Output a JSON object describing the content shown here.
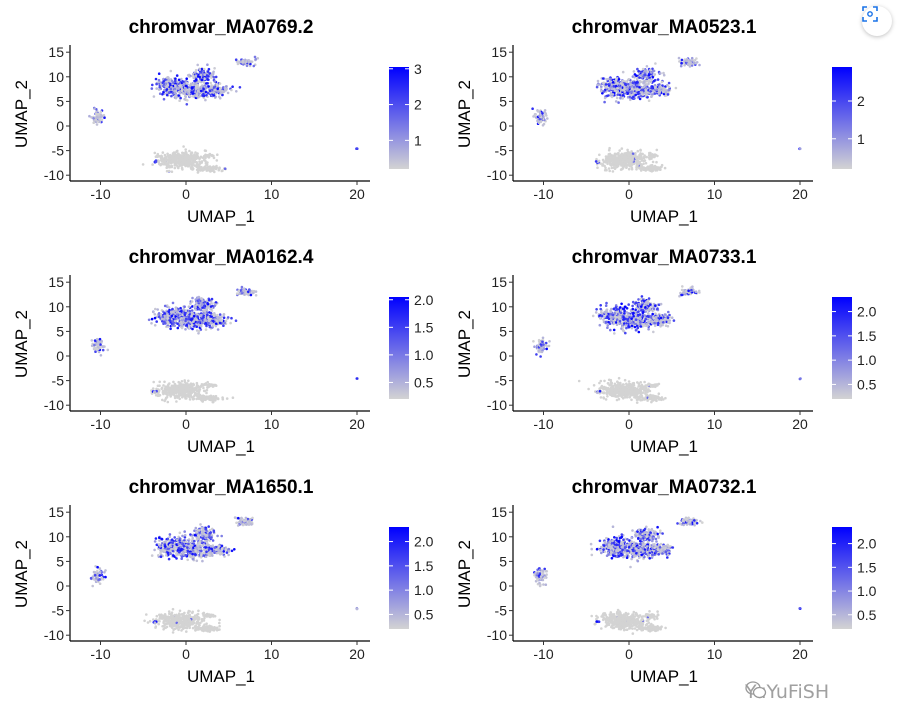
{
  "chart_data": [
    {
      "type": "scatter",
      "title": "chromvar_MA0769.2",
      "xlabel": "UMAP_1",
      "ylabel": "UMAP_2",
      "xlim": [
        -13.5,
        21.5
      ],
      "ylim": [
        -11,
        16
      ],
      "xticks": [
        -10,
        0,
        10,
        20
      ],
      "yticks": [
        15,
        10,
        5,
        0,
        -5,
        -10
      ],
      "legend": {
        "position": "right",
        "range": [
          0.2,
          3.05
        ],
        "ticks": [
          "3",
          "2",
          "1"
        ],
        "tick_values": [
          3,
          2,
          1
        ]
      },
      "colors": {
        "low": "#d3d3d3",
        "high": "#0000ff"
      }
    },
    {
      "type": "scatter",
      "title": "chromvar_MA0523.1",
      "xlabel": "UMAP_1",
      "ylabel": "UMAP_2",
      "xlim": [
        -13.5,
        21.5
      ],
      "ylim": [
        -11,
        16
      ],
      "xticks": [
        -10,
        0,
        10,
        20
      ],
      "yticks": [
        15,
        10,
        5,
        0,
        -5,
        -10
      ],
      "legend": {
        "position": "right",
        "range": [
          0.2,
          2.9
        ],
        "ticks": [
          "2",
          "1"
        ],
        "tick_values": [
          2,
          1
        ]
      },
      "colors": {
        "low": "#d3d3d3",
        "high": "#0000ff"
      }
    },
    {
      "type": "scatter",
      "title": "chromvar_MA0162.4",
      "xlabel": "UMAP_1",
      "ylabel": "UMAP_2",
      "xlim": [
        -13.5,
        21.5
      ],
      "ylim": [
        -11,
        16
      ],
      "xticks": [
        -10,
        0,
        10,
        20
      ],
      "yticks": [
        15,
        10,
        5,
        0,
        -5,
        -10
      ],
      "legend": {
        "position": "right",
        "range": [
          0.2,
          2.05
        ],
        "ticks": [
          "2.0",
          "1.5",
          "1.0",
          "0.5"
        ],
        "tick_values": [
          2,
          1.5,
          1,
          0.5
        ]
      },
      "colors": {
        "low": "#d3d3d3",
        "high": "#0000ff"
      }
    },
    {
      "type": "scatter",
      "title": "chromvar_MA0733.1",
      "xlabel": "UMAP_1",
      "ylabel": "UMAP_2",
      "xlim": [
        -13.5,
        21.5
      ],
      "ylim": [
        -11,
        16
      ],
      "xticks": [
        -10,
        0,
        10,
        20
      ],
      "yticks": [
        15,
        10,
        5,
        0,
        -5,
        -10
      ],
      "legend": {
        "position": "right",
        "range": [
          0.2,
          2.3
        ],
        "ticks": [
          "2.0",
          "1.5",
          "1.0",
          "0.5"
        ],
        "tick_values": [
          2,
          1.5,
          1,
          0.5
        ]
      },
      "colors": {
        "low": "#d3d3d3",
        "high": "#0000ff"
      }
    },
    {
      "type": "scatter",
      "title": "chromvar_MA1650.1",
      "xlabel": "UMAP_1",
      "ylabel": "UMAP_2",
      "xlim": [
        -13.5,
        21.5
      ],
      "ylim": [
        -11,
        16
      ],
      "xticks": [
        -10,
        0,
        10,
        20
      ],
      "yticks": [
        15,
        10,
        5,
        0,
        -5,
        -10
      ],
      "legend": {
        "position": "right",
        "range": [
          0.2,
          2.3
        ],
        "ticks": [
          "2.0",
          "1.5",
          "1.0",
          "0.5"
        ],
        "tick_values": [
          2,
          1.5,
          1,
          0.5
        ]
      },
      "colors": {
        "low": "#d3d3d3",
        "high": "#0000ff"
      }
    },
    {
      "type": "scatter",
      "title": "chromvar_MA0732.1",
      "xlabel": "UMAP_1",
      "ylabel": "UMAP_2",
      "xlim": [
        -13.5,
        21.5
      ],
      "ylim": [
        -11,
        16
      ],
      "xticks": [
        -10,
        0,
        10,
        20
      ],
      "yticks": [
        15,
        10,
        5,
        0,
        -5,
        -10
      ],
      "legend": {
        "position": "right",
        "range": [
          0.2,
          2.35
        ],
        "ticks": [
          "2.0",
          "1.5",
          "1.0",
          "0.5"
        ],
        "tick_values": [
          2,
          1.5,
          1,
          0.5
        ]
      },
      "colors": {
        "low": "#d3d3d3",
        "high": "#0000ff"
      }
    }
  ],
  "clusters": [
    {
      "cx": -1.5,
      "cy": 8,
      "sx": 1.2,
      "sy": 1.2,
      "n": 260,
      "expr": 0.55
    },
    {
      "cx": 1,
      "cy": 7.3,
      "sx": 1.4,
      "sy": 1.1,
      "n": 260,
      "expr": 0.5
    },
    {
      "cx": 3.6,
      "cy": 7.4,
      "sx": 0.9,
      "sy": 0.7,
      "n": 110,
      "expr": 0.4
    },
    {
      "cx": 2,
      "cy": 10.4,
      "sx": 0.9,
      "sy": 0.9,
      "n": 120,
      "expr": 0.55
    },
    {
      "cx": 7,
      "cy": 13,
      "sx": 0.7,
      "sy": 0.45,
      "n": 70,
      "expr": 0.3
    },
    {
      "cx": -10.3,
      "cy": 2,
      "sx": 0.45,
      "sy": 0.9,
      "n": 60,
      "expr": 0.3
    },
    {
      "cx": -0.6,
      "cy": -7,
      "sx": 1.7,
      "sy": 1.0,
      "n": 380,
      "expr": 0.02
    },
    {
      "cx": 2.5,
      "cy": -8.6,
      "sx": 1.0,
      "sy": 0.35,
      "n": 90,
      "expr": 0.02
    },
    {
      "cx": 2.7,
      "cy": -6,
      "sx": 0.5,
      "sy": 0.25,
      "n": 25,
      "expr": 0.02
    },
    {
      "cx": -3.6,
      "cy": -7.3,
      "sx": 0.15,
      "sy": 0.15,
      "n": 6,
      "expr": 0.6
    },
    {
      "cx": 20,
      "cy": -4.6,
      "sx": 0.05,
      "sy": 0.05,
      "n": 3,
      "expr": 0.8
    }
  ],
  "watermark": "YuYuFiSH"
}
